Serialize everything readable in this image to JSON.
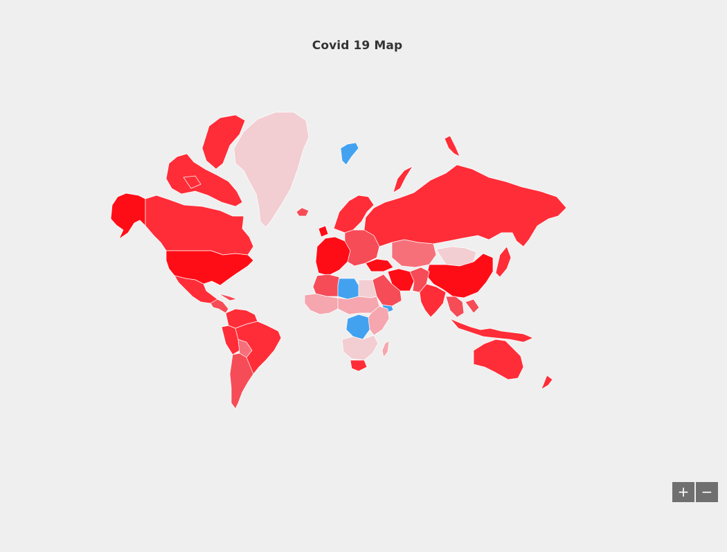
{
  "title": "Covid 19 Map",
  "zoom": {
    "in_label": "+",
    "out_label": "−"
  },
  "colors": {
    "background": "#efefef",
    "very_high": "#ff0d17",
    "high": "#ff2d38",
    "medium_high": "#f54c57",
    "medium": "#f6707a",
    "low": "#f5a6ae",
    "very_low": "#f2cdd1",
    "no_data": "#42a2f0",
    "border": "#ffffff"
  },
  "regions": [
    {
      "name": "Alaska",
      "level": "very_high"
    },
    {
      "name": "Canada",
      "level": "high"
    },
    {
      "name": "Canadian Arctic",
      "level": "high"
    },
    {
      "name": "Greenland",
      "level": "very_low"
    },
    {
      "name": "Iceland",
      "level": "medium_high"
    },
    {
      "name": "United States",
      "level": "very_high"
    },
    {
      "name": "Mexico",
      "level": "high"
    },
    {
      "name": "Central America",
      "level": "medium_high"
    },
    {
      "name": "Colombia Venezuela",
      "level": "high"
    },
    {
      "name": "Peru",
      "level": "high"
    },
    {
      "name": "Brazil",
      "level": "high"
    },
    {
      "name": "Bolivia",
      "level": "medium"
    },
    {
      "name": "Chile Argentina",
      "level": "medium_high"
    },
    {
      "name": "Western Europe",
      "level": "very_high"
    },
    {
      "name": "Scandinavia",
      "level": "high"
    },
    {
      "name": "Eastern Europe",
      "level": "medium_high"
    },
    {
      "name": "Russia",
      "level": "high"
    },
    {
      "name": "Novaya Zemlya",
      "level": "high"
    },
    {
      "name": "Svalbard",
      "level": "no_data"
    },
    {
      "name": "Turkey",
      "level": "very_high"
    },
    {
      "name": "Iran",
      "level": "very_high"
    },
    {
      "name": "Central Asia",
      "level": "medium"
    },
    {
      "name": "Mongolia",
      "level": "very_low"
    },
    {
      "name": "China",
      "level": "very_high"
    },
    {
      "name": "Japan",
      "level": "high"
    },
    {
      "name": "India",
      "level": "high"
    },
    {
      "name": "Pakistan Afghanistan",
      "level": "medium_high"
    },
    {
      "name": "Arabia",
      "level": "medium_high"
    },
    {
      "name": "Yemen",
      "level": "no_data"
    },
    {
      "name": "Southeast Asia",
      "level": "medium_high"
    },
    {
      "name": "Indonesia",
      "level": "high"
    },
    {
      "name": "Australia",
      "level": "high"
    },
    {
      "name": "New Zealand",
      "level": "high"
    },
    {
      "name": "North Africa",
      "level": "medium_high"
    },
    {
      "name": "Libya",
      "level": "no_data"
    },
    {
      "name": "Egypt",
      "level": "very_low"
    },
    {
      "name": "West Africa",
      "level": "low"
    },
    {
      "name": "Central Africa",
      "level": "low"
    },
    {
      "name": "DR Congo",
      "level": "no_data"
    },
    {
      "name": "East Africa",
      "level": "low"
    },
    {
      "name": "Southern Africa",
      "level": "very_low"
    },
    {
      "name": "South Africa",
      "level": "high"
    },
    {
      "name": "Madagascar",
      "level": "low"
    }
  ]
}
